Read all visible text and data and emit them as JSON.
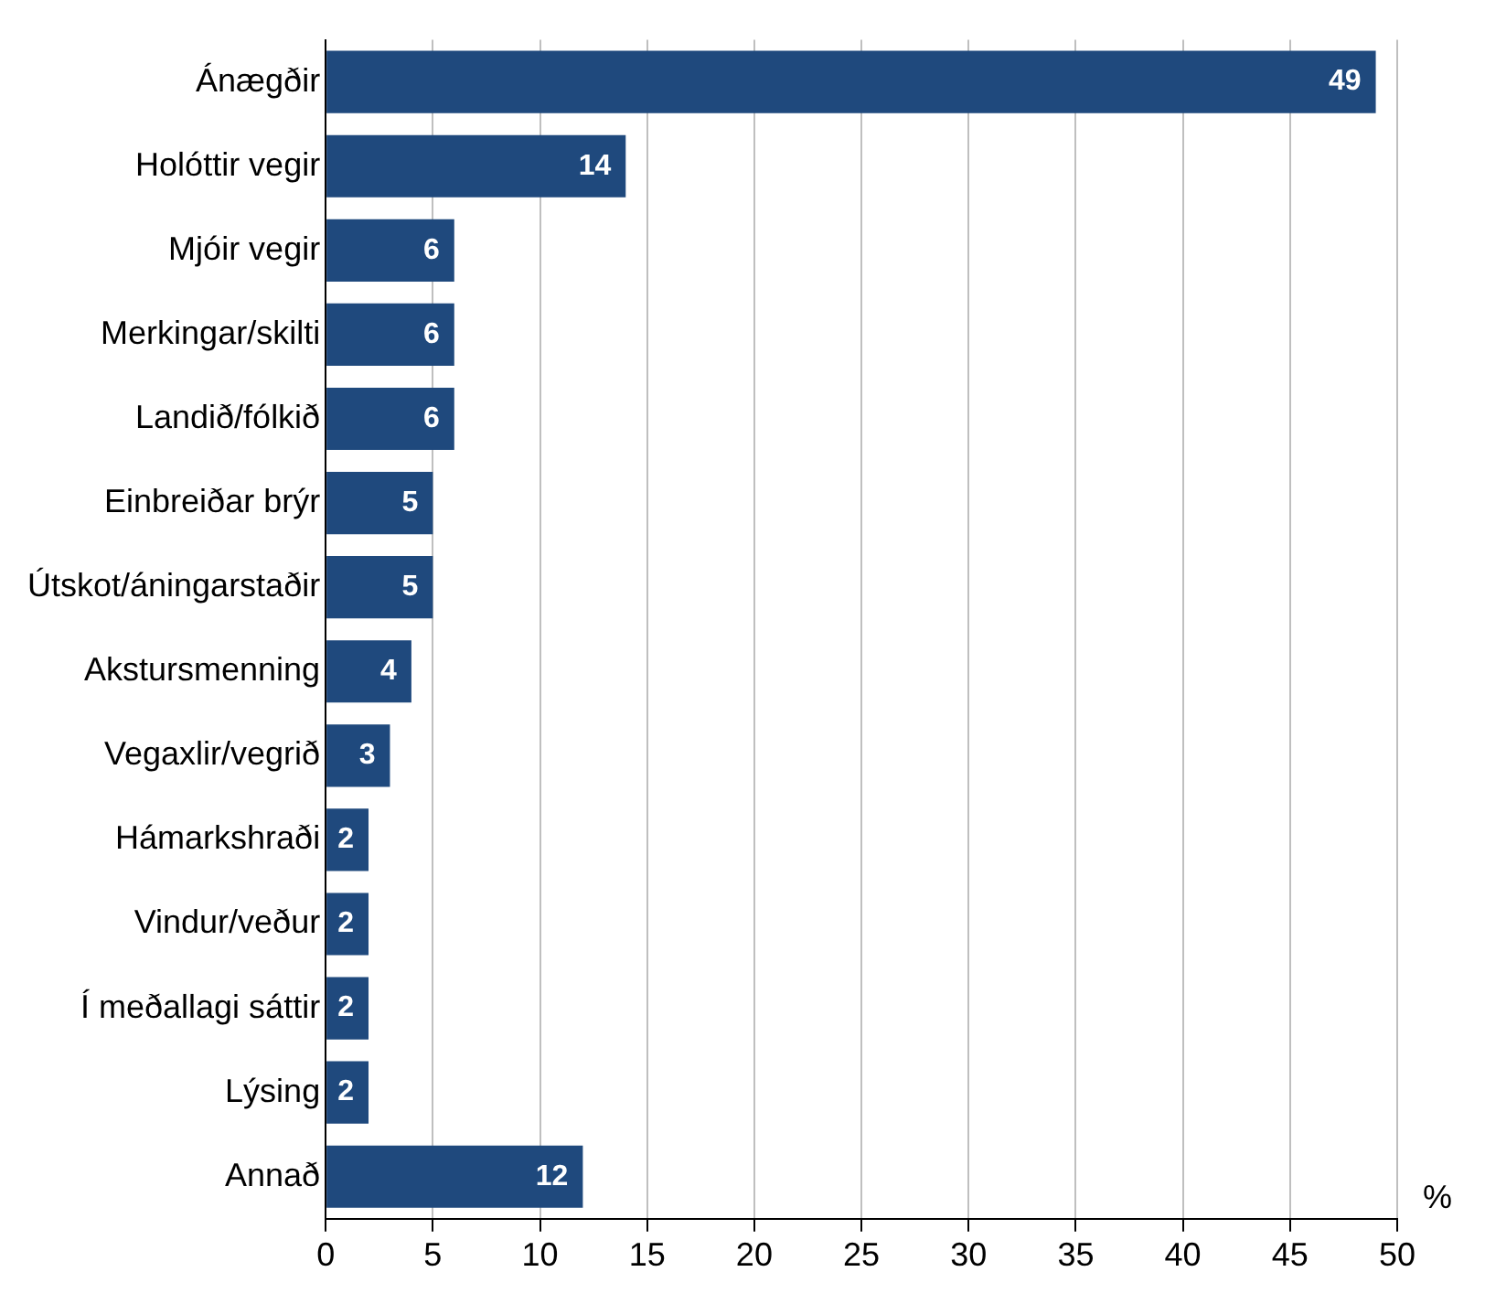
{
  "chart_data": {
    "type": "bar",
    "orientation": "horizontal",
    "categories": [
      "Ánægðir",
      "Holóttir vegir",
      "Mjóir vegir",
      "Merkingar/skilti",
      "Landið/fólkið",
      "Einbreiðar brýr",
      "Útskot/áningarstaðir",
      "Akstursmenning",
      "Vegaxlir/vegrið",
      "Hámarkshraði",
      "Vindur/veður",
      "Í meðallagi sáttir",
      "Lýsing",
      "Annað"
    ],
    "values": [
      49,
      14,
      6,
      6,
      6,
      5,
      5,
      4,
      3,
      2,
      2,
      2,
      2,
      12
    ],
    "color": "#1f497d",
    "xlabel": "%",
    "xlim": [
      0,
      50
    ],
    "xticks": [
      0,
      5,
      10,
      15,
      20,
      25,
      30,
      35,
      40,
      45,
      50
    ],
    "grid": "x",
    "data_labels": true
  }
}
